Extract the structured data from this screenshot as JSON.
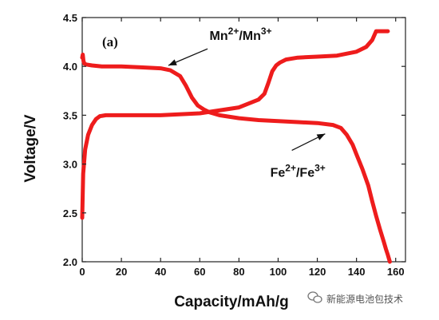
{
  "chart_data": {
    "type": "line",
    "panel_label": "(a)",
    "xlabel": "Capacity/mAh/g",
    "ylabel": "Voltage/V",
    "xlim": [
      0,
      165
    ],
    "ylim": [
      2.0,
      4.5
    ],
    "xticks": [
      0,
      20,
      40,
      60,
      80,
      100,
      120,
      140,
      160
    ],
    "yticks": [
      2.0,
      2.5,
      3.0,
      3.5,
      4.0,
      4.5
    ],
    "xtick_labels": [
      "0",
      "20",
      "40",
      "60",
      "80",
      "100",
      "120",
      "140",
      "160"
    ],
    "ytick_labels": [
      "2.0",
      "2.5",
      "3.0",
      "3.5",
      "4.0",
      "4.5"
    ],
    "grid": false,
    "line_color": "#ee1c1c",
    "series": [
      {
        "x": [
          0,
          0.5,
          1.5,
          3,
          5,
          7,
          9,
          12,
          20,
          40,
          60,
          80,
          90,
          93,
          95,
          97,
          99,
          101,
          104,
          110,
          120,
          130,
          140,
          145,
          148,
          150,
          152,
          156
        ],
        "y": [
          2.45,
          2.9,
          3.15,
          3.3,
          3.4,
          3.46,
          3.49,
          3.5,
          3.5,
          3.5,
          3.52,
          3.58,
          3.66,
          3.72,
          3.83,
          3.95,
          4.01,
          4.04,
          4.07,
          4.09,
          4.1,
          4.11,
          4.15,
          4.2,
          4.27,
          4.36,
          4.36,
          4.36
        ]
      },
      {
        "x": [
          0,
          0.3,
          0.6,
          1,
          2,
          5,
          10,
          20,
          30,
          40,
          45,
          50,
          53,
          56,
          59,
          62,
          65,
          70,
          80,
          90,
          100,
          110,
          120,
          128,
          132,
          135,
          138,
          140,
          143,
          146,
          148,
          150,
          152,
          154,
          155,
          156,
          157
        ],
        "y": [
          4.09,
          4.12,
          4.06,
          4.03,
          4.02,
          4.01,
          4.0,
          4.0,
          3.99,
          3.98,
          3.96,
          3.9,
          3.8,
          3.68,
          3.6,
          3.56,
          3.53,
          3.5,
          3.47,
          3.45,
          3.44,
          3.43,
          3.42,
          3.4,
          3.37,
          3.3,
          3.2,
          3.1,
          2.95,
          2.78,
          2.62,
          2.47,
          2.33,
          2.2,
          2.13,
          2.07,
          2.0
        ]
      }
    ],
    "annotations": [
      {
        "base": "Mn",
        "sup1": "2+",
        "mid": "/Mn",
        "sup2": "3+",
        "text_x": 65,
        "text_y": 4.27,
        "arrow_from": [
          64,
          4.18
        ],
        "arrow_to": [
          44,
          4.01
        ]
      },
      {
        "base": "Fe",
        "sup1": "2+",
        "mid": "/Fe",
        "sup2": "3+",
        "text_x": 96,
        "text_y": 2.87,
        "arrow_from": [
          107,
          3.14
        ],
        "arrow_to": [
          124,
          3.31
        ]
      }
    ]
  },
  "watermark": {
    "icon": "wechat-logo",
    "text": "新能源电池包技术"
  }
}
